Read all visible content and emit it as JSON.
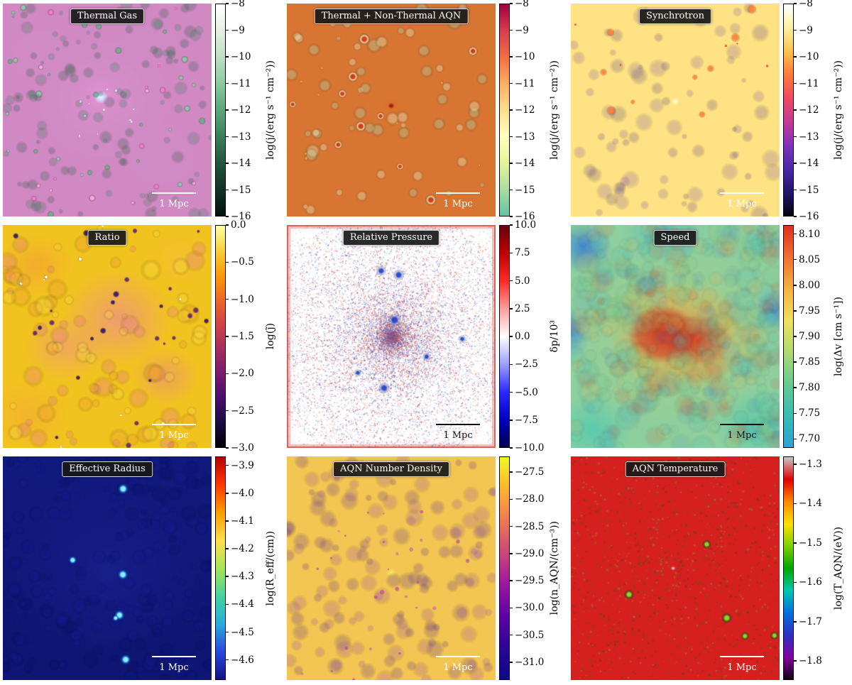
{
  "chart_data": [
    {
      "type": "heatmap",
      "title": "Thermal Gas",
      "colorbar_label": "log(j/(erg s⁻¹ cm⁻²))",
      "colorbar_ticks": [
        "−8",
        "−9",
        "−10",
        "−11",
        "−12",
        "−13",
        "−14",
        "−15",
        "−16"
      ],
      "colorbar_range": [
        -8,
        -16
      ],
      "colormap_top_to_bottom": [
        "#ffffff",
        "#e6f0e4",
        "#bcdfc6",
        "#8cc9a0",
        "#5ca67c",
        "#3a7f5d",
        "#235641",
        "#123228",
        "#02130c"
      ],
      "scale_bar": "1 Mpc",
      "scale_bar_color": "#ffffff",
      "tick_span": [
        0,
        1
      ],
      "render": {
        "layers": [
          {
            "count": 30,
            "colors": [
              "rgba(120,220,160,0.8)",
              "rgba(70,190,120,0.7)"
            ],
            "min": 2,
            "max": 6
          },
          {
            "count": 16,
            "colors": [
              "rgba(255,170,220,0.9)",
              "rgba(255,120,200,0.8)"
            ],
            "min": 2,
            "max": 5
          },
          {
            "count": 12,
            "colors": [
              "rgba(220,255,245,0.9)"
            ],
            "min": 1,
            "max": 3,
            "dist": "center",
            "radius": 0.2,
            "pow": 1
          },
          {
            "count": 120,
            "colors": [
              "rgba(40,140,90,0.25)",
              "rgba(20,100,60,0.25)"
            ],
            "min": 3,
            "max": 10
          }
        ]
      }
    },
    {
      "type": "heatmap",
      "title": "Thermal + Non-Thermal AQN",
      "colorbar_label": "log(j/(erg s⁻¹ cm⁻²))",
      "colorbar_ticks": [
        "−8",
        "−9",
        "−10",
        "−11",
        "−12",
        "−13",
        "−14",
        "−15",
        "−16"
      ],
      "colorbar_range": [
        -8,
        -16
      ],
      "colormap_top_to_bottom": [
        "#9e0142",
        "#d53e4f",
        "#f46d43",
        "#fdae61",
        "#fee08b",
        "#ffffbf",
        "#e6f598",
        "#abdda4",
        "#66c2a5"
      ],
      "scale_bar": "1 Mpc",
      "scale_bar_color": "#ffffff",
      "tick_span": [
        0,
        1
      ],
      "render": {
        "layers": [
          {
            "count": 60,
            "colors": [
              "rgba(235,245,200,0.35)",
              "rgba(170,215,170,0.35)"
            ],
            "min": 4,
            "max": 12
          },
          {
            "count": 10,
            "colors": [
              "rgba(205,60,25,0.95)"
            ],
            "halo": "rgba(250,240,190,0.8)",
            "min": 2,
            "max": 4
          },
          {
            "count": 8,
            "colors": [
              "rgba(240,170,60,0.8)"
            ],
            "min": 1.5,
            "max": 3
          }
        ]
      }
    },
    {
      "type": "heatmap",
      "title": "Synchrotron",
      "colorbar_label": "log(j/(erg s⁻¹ cm⁻²))",
      "colorbar_ticks": [
        "−8",
        "−9",
        "−10",
        "−11",
        "−12",
        "−13",
        "−14",
        "−15",
        "−16"
      ],
      "colorbar_range": [
        -8,
        -16
      ],
      "colormap_top_to_bottom": [
        "#ffffff",
        "#fff1a0",
        "#ffc34e",
        "#ff7b38",
        "#ef4a62",
        "#c33b94",
        "#8134b8",
        "#4b28a8",
        "#201666",
        "#070310"
      ],
      "scale_bar": "1 Mpc",
      "scale_bar_color": "#ffffff",
      "tick_span": [
        0,
        1
      ],
      "render": {
        "layers": [
          {
            "count": 80,
            "colors": [
              "rgba(90,60,190,0.2)",
              "rgba(50,30,140,0.2)"
            ],
            "min": 4,
            "max": 14
          },
          {
            "count": 9,
            "colors": [
              "rgba(255,130,50,0.95)"
            ],
            "halo": "rgba(255,80,40,0.5)",
            "min": 1.5,
            "max": 3.5
          },
          {
            "count": 5,
            "colors": [
              "rgba(255,60,60,0.9)"
            ],
            "min": 1,
            "max": 2.5
          }
        ]
      }
    },
    {
      "type": "heatmap",
      "title": "Ratio",
      "colorbar_label": "log(j̃)",
      "colorbar_ticks": [
        "0.0",
        "−0.5",
        "−1.0",
        "−1.5",
        "−2.0",
        "−2.5",
        "−3.0"
      ],
      "colorbar_range": [
        0,
        -3
      ],
      "colormap_top_to_bottom": [
        "#fcffa4",
        "#f7d13d",
        "#fb9b06",
        "#ed6925",
        "#cf4446",
        "#a52c60",
        "#781c6d",
        "#4a0c6b",
        "#1b0c41",
        "#000004"
      ],
      "scale_bar": "1 Mpc",
      "scale_bar_color": "#ffffff",
      "tick_span": [
        0,
        1
      ],
      "render": {
        "layers": [
          {
            "count": 90,
            "colors": [
              "rgba(240,150,50,0.3)",
              "rgba(230,100,170,0.25)",
              "rgba(250,220,70,0.3)"
            ],
            "min": 5,
            "max": 16
          },
          {
            "count": 26,
            "colors": [
              "rgba(50,16,112,0.9)",
              "rgba(90,20,140,0.85)"
            ],
            "min": 2,
            "max": 5
          },
          {
            "count": 10,
            "colors": [
              "rgba(255,255,255,0.95)"
            ],
            "min": 1.5,
            "max": 3.5
          }
        ]
      }
    },
    {
      "type": "heatmap",
      "title": "Relative Pressure",
      "colorbar_label": "δp/10³",
      "colorbar_ticks": [
        "10.0",
        "7.5",
        "5.0",
        "2.5",
        "0.0",
        "−2.5",
        "−5.0",
        "−7.5",
        "−10.0"
      ],
      "colorbar_range": [
        10,
        -10
      ],
      "colormap_top_to_bottom": [
        "#650010",
        "#c00000",
        "#ff2a2a",
        "#ff9e9e",
        "#ffffff",
        "#9e9eff",
        "#2a2aff",
        "#0000c0",
        "#00004c"
      ],
      "scale_bar": "1 Mpc",
      "scale_bar_color": "#111111",
      "tick_span": [
        0,
        1
      ],
      "render": {
        "layers": [
          {
            "type": "noise",
            "count": 16000,
            "colors": [
              "rgba(200,50,40,0.5)",
              "rgba(60,90,200,0.5)",
              "rgba(220,100,90,0.4)",
              "rgba(110,140,220,0.4)"
            ],
            "min": 0.7,
            "max": 1.8,
            "dist": "center",
            "radius": 0.62,
            "pow": 1.4
          },
          {
            "type": "noise",
            "count": 2500,
            "colors": [
              "rgba(200,50,40,0.35)",
              "rgba(60,90,200,0.35)"
            ],
            "min": 0.7,
            "max": 1.5
          },
          {
            "count": 7,
            "colors": [
              "rgba(30,60,190,0.9)"
            ],
            "halo": "rgba(120,150,230,0.5)",
            "min": 2.5,
            "max": 4.5,
            "dist": "center",
            "radius": 0.42,
            "pow": 0.7
          }
        ]
      }
    },
    {
      "type": "heatmap",
      "title": "Speed",
      "colorbar_label": "log(Δv [cm s⁻¹])",
      "colorbar_ticks": [
        "8.10",
        "8.05",
        "8.00",
        "7.95",
        "7.90",
        "7.85",
        "7.80",
        "7.75",
        "7.70"
      ],
      "colorbar_range": [
        8.1,
        7.7
      ],
      "colormap_top_to_bottom": [
        "#e03020",
        "#f07030",
        "#f5b342",
        "#efe060",
        "#b0da70",
        "#66ca92",
        "#36bcb4",
        "#2aa4d4"
      ],
      "scale_bar": "1 Mpc",
      "scale_bar_color": "#111111",
      "tick_span": [
        0.04,
        0.96
      ],
      "render": {
        "layers": [
          {
            "count": 350,
            "colors": [
              "rgba(220,60,30,0.12)",
              "rgba(240,170,60,0.12)",
              "rgba(120,200,130,0.12)",
              "rgba(60,190,190,0.14)",
              "rgba(40,120,220,0.10)"
            ],
            "min": 6,
            "max": 20
          }
        ]
      }
    },
    {
      "type": "heatmap",
      "title": "Effective Radius",
      "colorbar_label": "log(R_eff/(cm))",
      "colorbar_ticks": [
        "−3.9",
        "−4.0",
        "−4.1",
        "−4.2",
        "−4.3",
        "−4.4",
        "−4.5",
        "−4.6"
      ],
      "colorbar_range": [
        -3.9,
        -4.6
      ],
      "colormap_top_to_bottom": [
        "#b80000",
        "#ff3800",
        "#ff9e00",
        "#ffe04a",
        "#a8e455",
        "#44d49e",
        "#28acdc",
        "#2a48dc",
        "#141284"
      ],
      "scale_bar": "1 Mpc",
      "scale_bar_color": "#ffffff",
      "tick_span": [
        0.04,
        0.91
      ],
      "render": {
        "layers": [
          {
            "count": 200,
            "colors": [
              "rgba(18,26,150,0.25)",
              "rgba(10,16,110,0.25)"
            ],
            "min": 4,
            "max": 12
          },
          {
            "count": 6,
            "colors": [
              "rgba(140,255,255,0.95)"
            ],
            "halo": "rgba(40,130,255,0.6)",
            "min": 2,
            "max": 4
          }
        ]
      }
    },
    {
      "type": "heatmap",
      "title": "AQN Number Density",
      "colorbar_label": "log(n_AQN/(cm⁻³))",
      "colorbar_ticks": [
        "−27.5",
        "−28.0",
        "−28.5",
        "−29.0",
        "−29.5",
        "−30.0",
        "−30.5",
        "−31.0"
      ],
      "colorbar_range": [
        -27.5,
        -31.0
      ],
      "colormap_top_to_bottom": [
        "#f0f921",
        "#fdb42f",
        "#ed7953",
        "#cc4778",
        "#9c179e",
        "#5c01a6",
        "#2c0594",
        "#0d0887"
      ],
      "scale_bar": "1 Mpc",
      "scale_bar_color": "#ffffff",
      "tick_span": [
        0.07,
        0.92
      ],
      "render": {
        "layers": [
          {
            "count": 150,
            "colors": [
              "rgba(120,40,210,0.18)",
              "rgba(60,15,170,0.2)"
            ],
            "min": 5,
            "max": 14
          },
          {
            "count": 46,
            "colors": [
              "rgba(235,90,205,0.75)",
              "rgba(200,60,190,0.7)"
            ],
            "min": 1.5,
            "max": 3.5,
            "dist": "center",
            "radius": 0.85,
            "pow": 0.75
          }
        ]
      }
    },
    {
      "type": "heatmap",
      "title": "AQN Temperature",
      "colorbar_label": "log(T_AQN/(eV))",
      "colorbar_ticks": [
        "−1.3",
        "−1.4",
        "−1.5",
        "−1.6",
        "−1.7",
        "−1.8"
      ],
      "colorbar_range": [
        -1.3,
        -1.8
      ],
      "colormap_top_to_bottom": [
        "#c8c8c8",
        "#e00000",
        "#ff8800",
        "#ffe000",
        "#80d000",
        "#00a800",
        "#00c8b0",
        "#0070dd",
        "#3030c0",
        "#8000a0",
        "#140016"
      ],
      "scale_bar": "1 Mpc",
      "scale_bar_color": "#ffffff",
      "tick_span": [
        0.035,
        0.915
      ],
      "render": {
        "layers": [
          {
            "type": "noise",
            "count": 3000,
            "colors": [
              "rgba(20,120,30,0.3)",
              "rgba(110,200,30,0.3)",
              "rgba(10,90,25,0.3)"
            ],
            "min": 1,
            "max": 3,
            "dist": "center",
            "radius": 0.95,
            "pow": 0.6
          },
          {
            "count": 5,
            "colors": [
              "rgba(150,230,40,0.9)"
            ],
            "halo": "rgba(30,130,30,0.7)",
            "min": 2.5,
            "max": 4
          }
        ]
      }
    }
  ]
}
